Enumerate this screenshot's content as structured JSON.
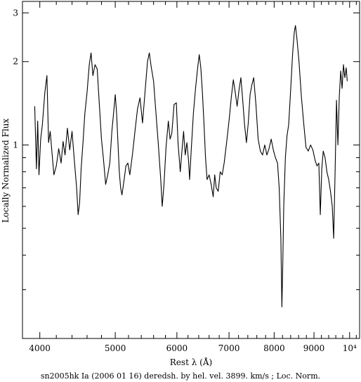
{
  "chart_data": {
    "type": "line",
    "xlabel": "Rest λ (Å)",
    "ylabel": "Locally Normalized Flux",
    "caption": "sn2005hk Ia (2006 01 16) deredsh. by hel. vel.  3899. km/s ;  Loc. Norm.",
    "x_scale": "log",
    "y_scale": "log",
    "xlim": [
      3800,
      10300
    ],
    "ylim": [
      0.2,
      3.3
    ],
    "x_ticks": [
      {
        "value": 4000,
        "label": "4000"
      },
      {
        "value": 5000,
        "label": "5000"
      },
      {
        "value": 6000,
        "label": "6000"
      },
      {
        "value": 7000,
        "label": "7000"
      },
      {
        "value": 8000,
        "label": "8000"
      },
      {
        "value": 9000,
        "label": "9000"
      },
      {
        "value": 10000,
        "label": "10⁴"
      }
    ],
    "y_ticks": [
      {
        "value": 1,
        "label": "1"
      },
      {
        "value": 2,
        "label": "2"
      },
      {
        "value": 3,
        "label": "3"
      }
    ],
    "series": [
      {
        "color": "#000000",
        "points": [
          [
            3940,
            1.38
          ],
          [
            3960,
            0.82
          ],
          [
            3975,
            1.22
          ],
          [
            3990,
            0.78
          ],
          [
            4010,
            1.05
          ],
          [
            4030,
            1.18
          ],
          [
            4060,
            1.55
          ],
          [
            4085,
            1.78
          ],
          [
            4105,
            1.02
          ],
          [
            4125,
            1.12
          ],
          [
            4145,
            0.95
          ],
          [
            4170,
            0.78
          ],
          [
            4200,
            0.84
          ],
          [
            4230,
            0.97
          ],
          [
            4260,
            0.86
          ],
          [
            4285,
            1.03
          ],
          [
            4310,
            0.92
          ],
          [
            4340,
            1.15
          ],
          [
            4370,
            0.96
          ],
          [
            4400,
            1.12
          ],
          [
            4430,
            0.88
          ],
          [
            4460,
            0.7
          ],
          [
            4480,
            0.56
          ],
          [
            4500,
            0.62
          ],
          [
            4520,
            0.82
          ],
          [
            4545,
            1.02
          ],
          [
            4570,
            1.3
          ],
          [
            4600,
            1.55
          ],
          [
            4630,
            1.95
          ],
          [
            4655,
            2.15
          ],
          [
            4680,
            1.78
          ],
          [
            4710,
            1.95
          ],
          [
            4740,
            1.88
          ],
          [
            4770,
            1.4
          ],
          [
            4800,
            1.05
          ],
          [
            4830,
            0.88
          ],
          [
            4860,
            0.72
          ],
          [
            4890,
            0.78
          ],
          [
            4920,
            0.86
          ],
          [
            4950,
            1.12
          ],
          [
            4975,
            1.3
          ],
          [
            5000,
            1.52
          ],
          [
            5020,
            1.3
          ],
          [
            5040,
            1.02
          ],
          [
            5060,
            0.8
          ],
          [
            5080,
            0.7
          ],
          [
            5100,
            0.66
          ],
          [
            5130,
            0.74
          ],
          [
            5160,
            0.84
          ],
          [
            5190,
            0.86
          ],
          [
            5220,
            0.78
          ],
          [
            5260,
            0.92
          ],
          [
            5300,
            1.12
          ],
          [
            5340,
            1.35
          ],
          [
            5380,
            1.48
          ],
          [
            5420,
            1.2
          ],
          [
            5460,
            1.55
          ],
          [
            5500,
            2.0
          ],
          [
            5530,
            2.15
          ],
          [
            5560,
            1.92
          ],
          [
            5600,
            1.7
          ],
          [
            5640,
            1.3
          ],
          [
            5680,
            1.0
          ],
          [
            5720,
            0.75
          ],
          [
            5745,
            0.6
          ],
          [
            5775,
            0.72
          ],
          [
            5810,
            0.98
          ],
          [
            5850,
            1.22
          ],
          [
            5880,
            1.05
          ],
          [
            5910,
            1.1
          ],
          [
            5950,
            1.4
          ],
          [
            5990,
            1.42
          ],
          [
            6020,
            1.02
          ],
          [
            6060,
            0.8
          ],
          [
            6090,
            0.95
          ],
          [
            6120,
            1.12
          ],
          [
            6150,
            0.92
          ],
          [
            6180,
            1.02
          ],
          [
            6210,
            0.88
          ],
          [
            6230,
            0.75
          ],
          [
            6260,
            0.96
          ],
          [
            6300,
            1.3
          ],
          [
            6340,
            1.6
          ],
          [
            6380,
            1.9
          ],
          [
            6410,
            2.12
          ],
          [
            6440,
            1.9
          ],
          [
            6470,
            1.55
          ],
          [
            6500,
            1.2
          ],
          [
            6530,
            0.9
          ],
          [
            6560,
            0.75
          ],
          [
            6600,
            0.78
          ],
          [
            6640,
            0.72
          ],
          [
            6680,
            0.65
          ],
          [
            6710,
            0.78
          ],
          [
            6740,
            0.7
          ],
          [
            6780,
            0.68
          ],
          [
            6820,
            0.8
          ],
          [
            6860,
            0.78
          ],
          [
            6900,
            0.86
          ],
          [
            6950,
            1.02
          ],
          [
            7000,
            1.22
          ],
          [
            7050,
            1.5
          ],
          [
            7090,
            1.72
          ],
          [
            7130,
            1.55
          ],
          [
            7170,
            1.38
          ],
          [
            7210,
            1.58
          ],
          [
            7250,
            1.75
          ],
          [
            7290,
            1.45
          ],
          [
            7330,
            1.18
          ],
          [
            7370,
            1.02
          ],
          [
            7410,
            1.2
          ],
          [
            7450,
            1.52
          ],
          [
            7490,
            1.65
          ],
          [
            7530,
            1.75
          ],
          [
            7580,
            1.4
          ],
          [
            7630,
            1.05
          ],
          [
            7680,
            0.95
          ],
          [
            7730,
            0.92
          ],
          [
            7780,
            1.0
          ],
          [
            7830,
            0.92
          ],
          [
            7880,
            0.97
          ],
          [
            7930,
            1.05
          ],
          [
            7980,
            0.96
          ],
          [
            8030,
            0.9
          ],
          [
            8080,
            0.86
          ],
          [
            8120,
            0.7
          ],
          [
            8160,
            0.46
          ],
          [
            8185,
            0.26
          ],
          [
            8205,
            0.36
          ],
          [
            8230,
            0.6
          ],
          [
            8270,
            0.9
          ],
          [
            8310,
            1.08
          ],
          [
            8350,
            1.18
          ],
          [
            8400,
            1.58
          ],
          [
            8450,
            2.15
          ],
          [
            8490,
            2.55
          ],
          [
            8520,
            2.7
          ],
          [
            8560,
            2.4
          ],
          [
            8610,
            2.0
          ],
          [
            8670,
            1.5
          ],
          [
            8730,
            1.2
          ],
          [
            8790,
            0.98
          ],
          [
            8850,
            0.95
          ],
          [
            8910,
            1.0
          ],
          [
            8970,
            0.96
          ],
          [
            9030,
            0.88
          ],
          [
            9080,
            0.84
          ],
          [
            9130,
            0.86
          ],
          [
            9170,
            0.56
          ],
          [
            9210,
            0.82
          ],
          [
            9250,
            0.95
          ],
          [
            9300,
            0.9
          ],
          [
            9350,
            0.8
          ],
          [
            9400,
            0.75
          ],
          [
            9450,
            0.68
          ],
          [
            9500,
            0.6
          ],
          [
            9540,
            0.46
          ],
          [
            9580,
            0.8
          ],
          [
            9620,
            1.45
          ],
          [
            9660,
            1.0
          ],
          [
            9700,
            1.5
          ],
          [
            9740,
            1.85
          ],
          [
            9780,
            1.6
          ],
          [
            9820,
            1.95
          ],
          [
            9860,
            1.75
          ],
          [
            9900,
            1.9
          ],
          [
            9930,
            1.7
          ]
        ]
      }
    ]
  }
}
